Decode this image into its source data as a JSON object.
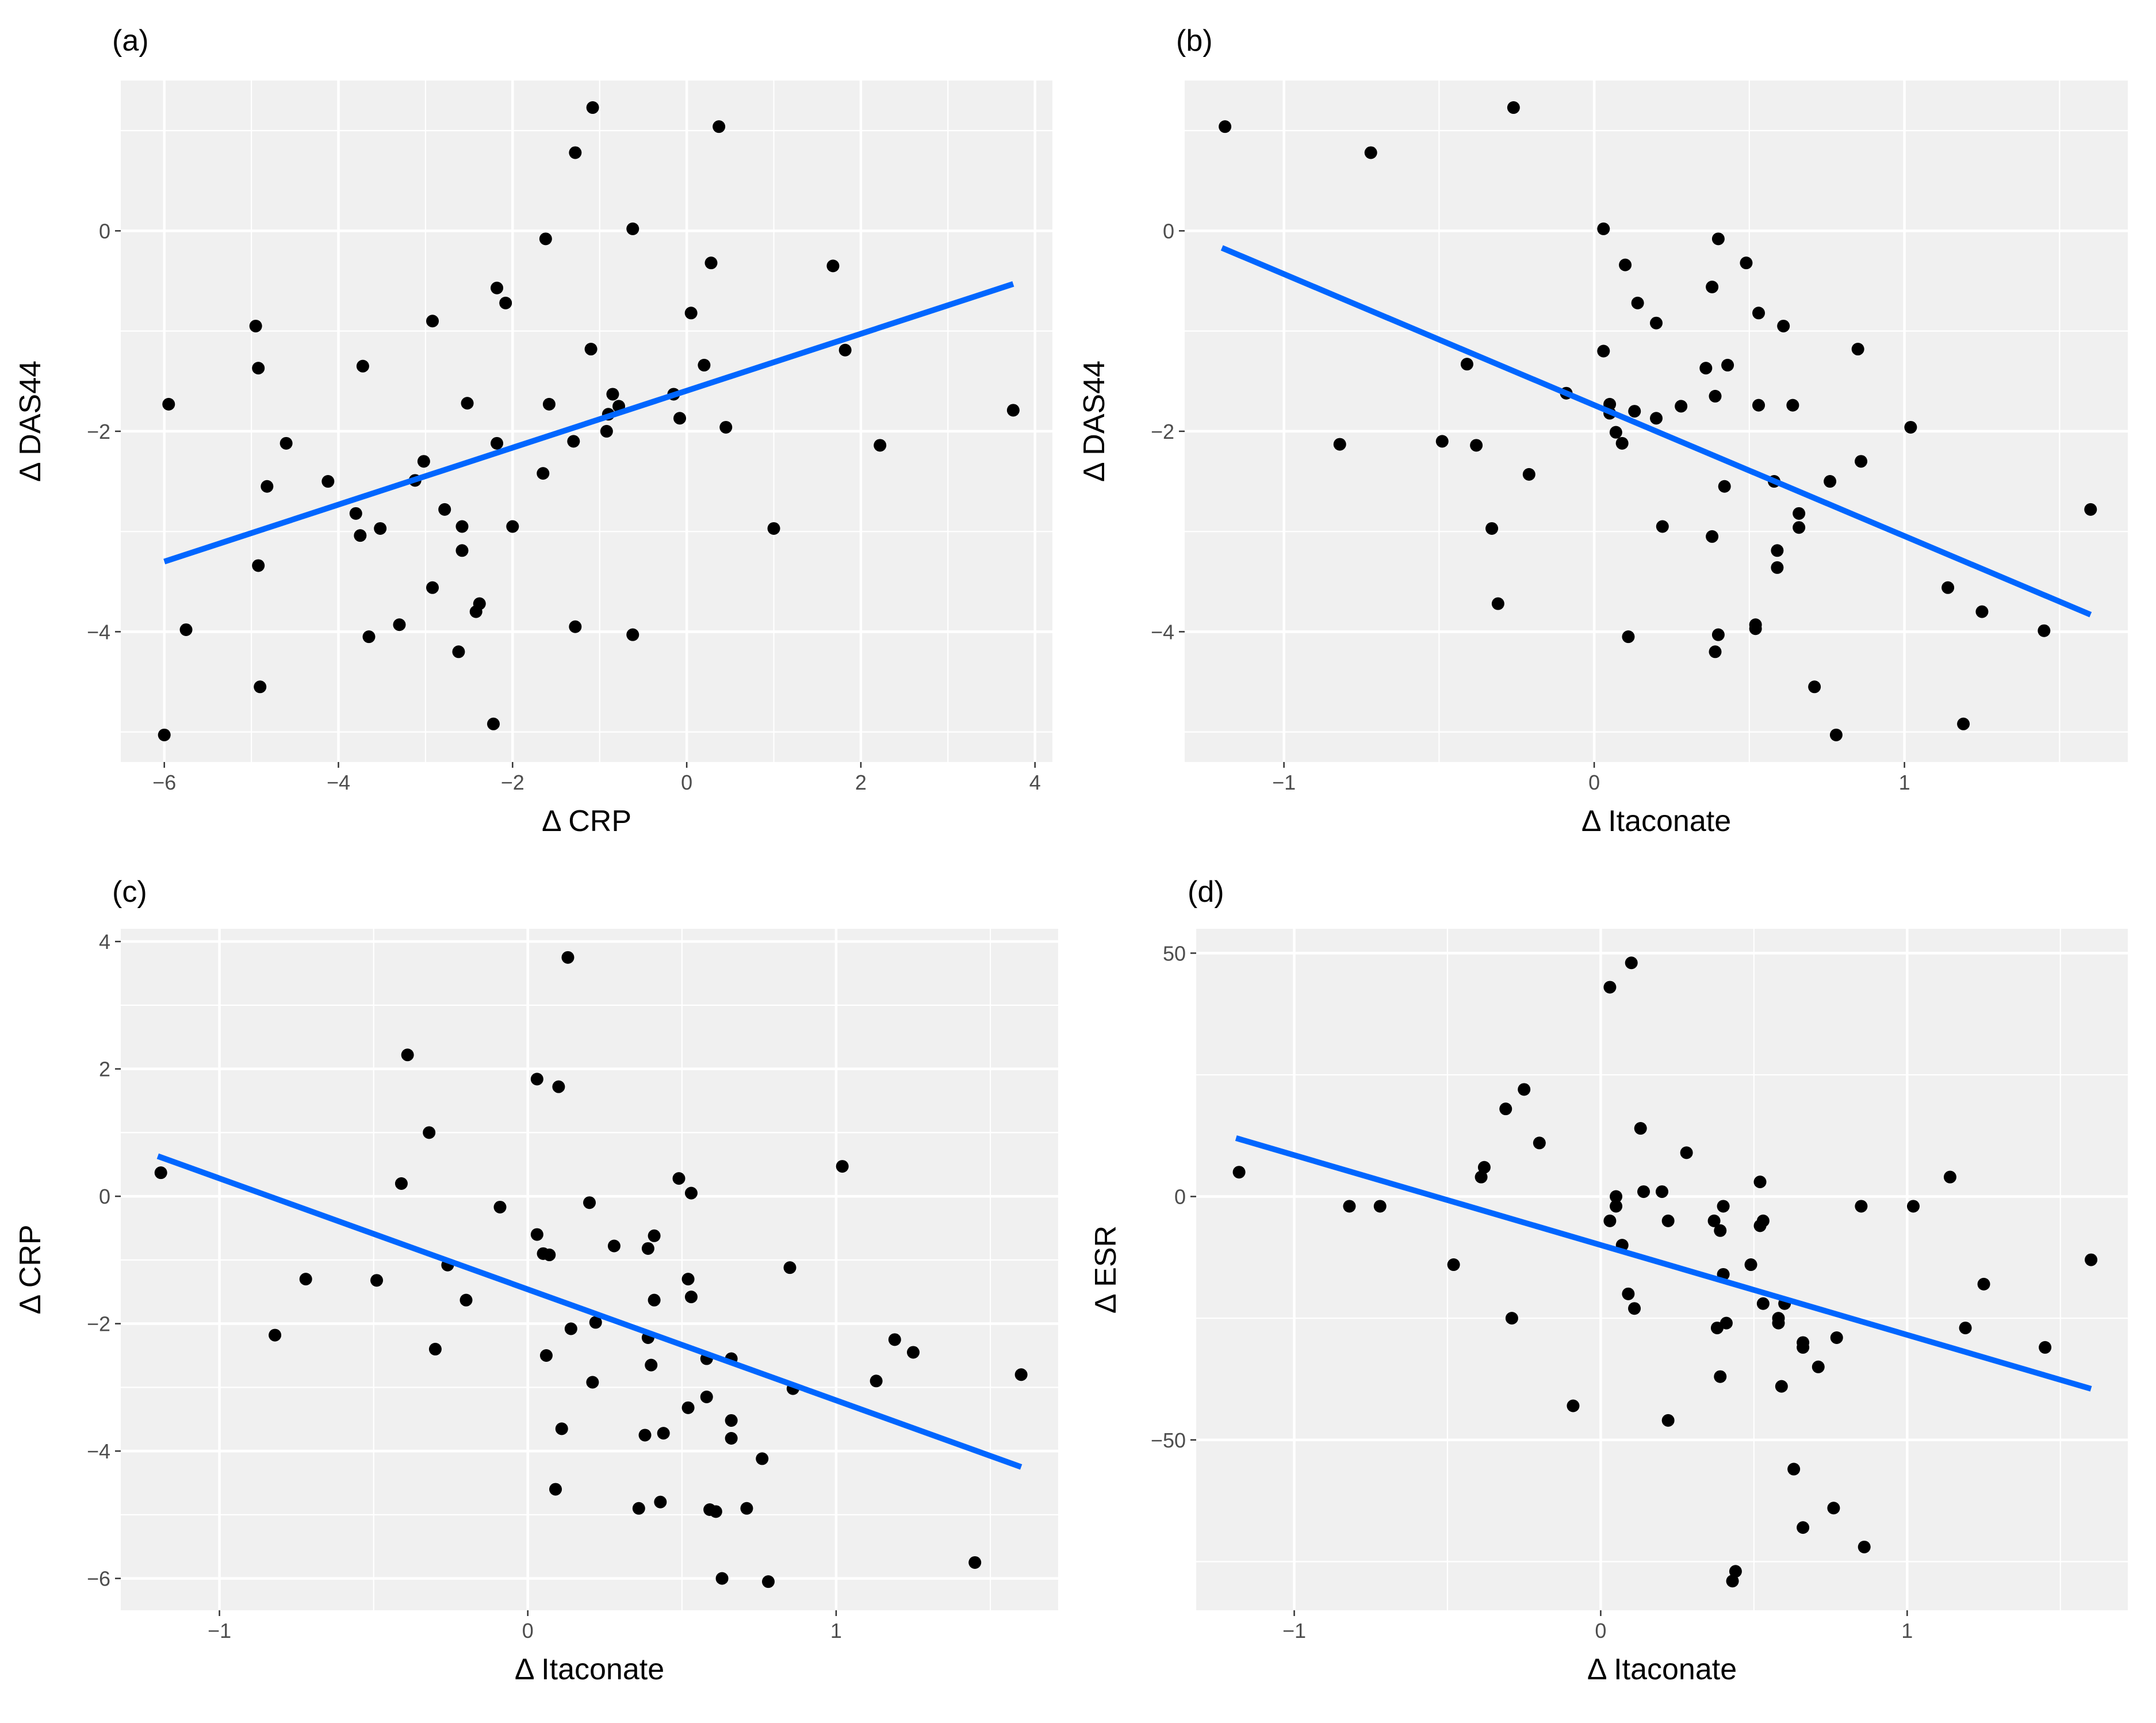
{
  "colors": {
    "fit_line": "#0066FF",
    "points": "#000000",
    "panel_background": "#F0F0F0",
    "grid": "#FFFFFF"
  },
  "chart_data": [
    {
      "type": "scatter",
      "label": "(a)",
      "xlabel": "Δ CRP",
      "ylabel": "Δ DAS44",
      "xlim": [
        -6.5,
        4.2
      ],
      "ylim": [
        -5.3,
        1.5
      ],
      "xticks": [
        -6,
        -4,
        -2,
        0,
        2,
        4
      ],
      "xtick_labels": [
        "−6",
        "−4",
        "−2",
        "0",
        "2",
        "4"
      ],
      "yticks": [
        -4,
        -2,
        0
      ],
      "ytick_labels": [
        "−4",
        "−2",
        "0"
      ],
      "fit_line": {
        "x": [
          -6.0,
          3.75
        ],
        "y": [
          -3.3,
          -0.53
        ]
      },
      "points": [
        [
          -6.0,
          -5.03
        ],
        [
          -5.95,
          -1.73
        ],
        [
          -5.75,
          -3.98
        ],
        [
          -4.95,
          -0.95
        ],
        [
          -4.92,
          -1.37
        ],
        [
          -4.92,
          -3.34
        ],
        [
          -4.9,
          -4.55
        ],
        [
          -4.82,
          -2.55
        ],
        [
          -4.6,
          -2.12
        ],
        [
          -4.12,
          -2.5
        ],
        [
          -3.8,
          -2.82
        ],
        [
          -3.75,
          -3.04
        ],
        [
          -3.72,
          -1.35
        ],
        [
          -3.65,
          -4.05
        ],
        [
          -3.52,
          -2.97
        ],
        [
          -3.3,
          -3.93
        ],
        [
          -3.12,
          -2.49
        ],
        [
          -3.02,
          -2.3
        ],
        [
          -2.92,
          -3.56
        ],
        [
          -2.92,
          -0.9
        ],
        [
          -2.78,
          -2.78
        ],
        [
          -2.58,
          -2.95
        ],
        [
          -2.58,
          -3.19
        ],
        [
          -2.52,
          -1.72
        ],
        [
          -2.62,
          -4.2
        ],
        [
          -2.42,
          -3.8
        ],
        [
          -2.38,
          -3.72
        ],
        [
          -2.22,
          -4.92
        ],
        [
          -2.18,
          -0.57
        ],
        [
          -2.18,
          -2.12
        ],
        [
          -2.08,
          -0.72
        ],
        [
          -2.0,
          -2.95
        ],
        [
          -1.65,
          -2.42
        ],
        [
          -1.62,
          -0.08
        ],
        [
          -1.58,
          -1.73
        ],
        [
          -1.3,
          -2.1
        ],
        [
          -1.28,
          0.78
        ],
        [
          -1.28,
          -3.95
        ],
        [
          -1.1,
          -1.18
        ],
        [
          -1.08,
          1.23
        ],
        [
          -0.9,
          -1.83
        ],
        [
          -0.85,
          -1.63
        ],
        [
          -0.78,
          -1.75
        ],
        [
          -0.62,
          0.02
        ],
        [
          -0.62,
          -4.03
        ],
        [
          -0.92,
          -2.0
        ],
        [
          -0.15,
          -1.63
        ],
        [
          -0.08,
          -1.87
        ],
        [
          0.05,
          -0.82
        ],
        [
          0.2,
          -1.34
        ],
        [
          0.28,
          -0.32
        ],
        [
          0.37,
          1.04
        ],
        [
          0.45,
          -1.96
        ],
        [
          1.0,
          -2.97
        ],
        [
          1.68,
          -0.35
        ],
        [
          1.82,
          -1.19
        ],
        [
          2.22,
          -2.14
        ],
        [
          3.75,
          -1.79
        ]
      ]
    },
    {
      "type": "scatter",
      "label": "(b)",
      "xlabel": "Δ Itaconate",
      "ylabel": "Δ DAS44",
      "xlim": [
        -1.32,
        1.72
      ],
      "ylim": [
        -5.3,
        1.5
      ],
      "xticks": [
        -1,
        0,
        1
      ],
      "xtick_labels": [
        "−1",
        "0",
        "1"
      ],
      "yticks": [
        -4,
        -2,
        0
      ],
      "ytick_labels": [
        "−4",
        "−2",
        "0"
      ],
      "fit_line": {
        "x": [
          -1.2,
          1.6
        ],
        "y": [
          -0.17,
          -3.83
        ]
      },
      "points": [
        [
          -1.19,
          1.04
        ],
        [
          -0.82,
          -2.13
        ],
        [
          -0.72,
          0.78
        ],
        [
          -0.49,
          -2.1
        ],
        [
          -0.41,
          -1.33
        ],
        [
          -0.38,
          -2.14
        ],
        [
          -0.33,
          -2.97
        ],
        [
          -0.31,
          -3.72
        ],
        [
          -0.26,
          1.23
        ],
        [
          -0.21,
          -2.43
        ],
        [
          -0.09,
          -1.62
        ],
        [
          0.03,
          0.02
        ],
        [
          0.03,
          -1.2
        ],
        [
          0.05,
          -1.73
        ],
        [
          0.05,
          -1.82
        ],
        [
          0.07,
          -2.01
        ],
        [
          0.09,
          -2.12
        ],
        [
          0.1,
          -0.34
        ],
        [
          0.11,
          -4.05
        ],
        [
          0.13,
          -1.8
        ],
        [
          0.14,
          -0.72
        ],
        [
          0.2,
          -0.92
        ],
        [
          0.2,
          -1.87
        ],
        [
          0.22,
          -2.95
        ],
        [
          0.28,
          -1.75
        ],
        [
          0.36,
          -1.37
        ],
        [
          0.38,
          -3.05
        ],
        [
          0.38,
          -0.56
        ],
        [
          0.39,
          -1.65
        ],
        [
          0.39,
          -4.2
        ],
        [
          0.4,
          -0.08
        ],
        [
          0.4,
          -4.03
        ],
        [
          0.42,
          -2.55
        ],
        [
          0.43,
          -1.34
        ],
        [
          0.49,
          -0.32
        ],
        [
          0.52,
          -3.93
        ],
        [
          0.52,
          -3.97
        ],
        [
          0.53,
          -1.74
        ],
        [
          0.53,
          -0.82
        ],
        [
          0.58,
          -2.5
        ],
        [
          0.59,
          -3.19
        ],
        [
          0.59,
          -3.36
        ],
        [
          0.61,
          -0.95
        ],
        [
          0.64,
          -1.74
        ],
        [
          0.66,
          -2.82
        ],
        [
          0.66,
          -2.96
        ],
        [
          0.71,
          -4.55
        ],
        [
          0.76,
          -2.5
        ],
        [
          0.78,
          -5.03
        ],
        [
          0.85,
          -1.18
        ],
        [
          0.86,
          -2.3
        ],
        [
          1.02,
          -1.96
        ],
        [
          1.14,
          -3.56
        ],
        [
          1.19,
          -4.92
        ],
        [
          1.25,
          -3.8
        ],
        [
          1.45,
          -3.99
        ],
        [
          1.6,
          -2.78
        ]
      ]
    },
    {
      "type": "scatter",
      "label": "(c)",
      "xlabel": "Δ Itaconate",
      "ylabel": "Δ CRP",
      "xlim": [
        -1.32,
        1.72
      ],
      "ylim": [
        -6.5,
        4.2
      ],
      "xticks": [
        -1,
        0,
        1
      ],
      "xtick_labels": [
        "−1",
        "0",
        "1"
      ],
      "yticks": [
        -6,
        -4,
        -2,
        0,
        2,
        4
      ],
      "ytick_labels": [
        "−6",
        "−4",
        "−2",
        "0",
        "2",
        "4"
      ],
      "fit_line": {
        "x": [
          -1.2,
          1.6
        ],
        "y": [
          0.63,
          -4.25
        ]
      },
      "points": [
        [
          -1.19,
          0.37
        ],
        [
          -0.82,
          -2.18
        ],
        [
          -0.72,
          -1.3
        ],
        [
          -0.49,
          -1.32
        ],
        [
          -0.41,
          0.2
        ],
        [
          -0.39,
          2.22
        ],
        [
          -0.32,
          1.0
        ],
        [
          -0.3,
          -2.4
        ],
        [
          -0.26,
          -1.08
        ],
        [
          -0.2,
          -1.63
        ],
        [
          -0.09,
          -0.17
        ],
        [
          0.03,
          1.84
        ],
        [
          0.03,
          -0.6
        ],
        [
          0.05,
          -0.9
        ],
        [
          0.06,
          -2.5
        ],
        [
          0.07,
          -0.92
        ],
        [
          0.09,
          -4.6
        ],
        [
          0.1,
          1.72
        ],
        [
          0.11,
          -3.65
        ],
        [
          0.13,
          3.75
        ],
        [
          0.14,
          -2.08
        ],
        [
          0.2,
          -0.1
        ],
        [
          0.21,
          -2.92
        ],
        [
          0.22,
          -1.98
        ],
        [
          0.28,
          -0.78
        ],
        [
          0.36,
          -4.9
        ],
        [
          0.38,
          -3.75
        ],
        [
          0.39,
          -0.82
        ],
        [
          0.39,
          -2.22
        ],
        [
          0.4,
          -2.65
        ],
        [
          0.41,
          -0.62
        ],
        [
          0.41,
          -1.63
        ],
        [
          0.43,
          -4.8
        ],
        [
          0.44,
          -3.72
        ],
        [
          0.49,
          0.28
        ],
        [
          0.52,
          -1.3
        ],
        [
          0.52,
          -3.32
        ],
        [
          0.53,
          0.05
        ],
        [
          0.53,
          -1.58
        ],
        [
          0.58,
          -2.55
        ],
        [
          0.58,
          -3.15
        ],
        [
          0.59,
          -4.92
        ],
        [
          0.61,
          -4.95
        ],
        [
          0.63,
          -6.0
        ],
        [
          0.66,
          -2.55
        ],
        [
          0.66,
          -3.52
        ],
        [
          0.66,
          -3.8
        ],
        [
          0.71,
          -4.9
        ],
        [
          0.76,
          -4.12
        ],
        [
          0.78,
          -6.05
        ],
        [
          0.85,
          -1.12
        ],
        [
          0.86,
          -3.02
        ],
        [
          1.02,
          0.47
        ],
        [
          1.13,
          -2.9
        ],
        [
          1.19,
          -2.25
        ],
        [
          1.25,
          -2.45
        ],
        [
          1.45,
          -5.75
        ],
        [
          1.6,
          -2.8
        ]
      ]
    },
    {
      "type": "scatter",
      "label": "(d)",
      "xlabel": "Δ Itaconate",
      "ylabel": "Δ ESR",
      "xlim": [
        -1.32,
        1.72
      ],
      "ylim": [
        -85,
        55
      ],
      "xticks": [
        -1,
        0,
        1
      ],
      "xtick_labels": [
        "−1",
        "0",
        "1"
      ],
      "yticks": [
        -50,
        0,
        50
      ],
      "ytick_labels": [
        "−50",
        "0",
        "50"
      ],
      "fit_line": {
        "x": [
          -1.19,
          1.6
        ],
        "y": [
          12.0,
          -39.5
        ]
      },
      "points": [
        [
          -1.18,
          5
        ],
        [
          -0.82,
          -2
        ],
        [
          -0.72,
          -2
        ],
        [
          -0.48,
          -14
        ],
        [
          -0.39,
          4
        ],
        [
          -0.38,
          6
        ],
        [
          -0.31,
          18
        ],
        [
          -0.29,
          -25
        ],
        [
          -0.25,
          22
        ],
        [
          -0.2,
          11
        ],
        [
          -0.09,
          -43
        ],
        [
          0.03,
          43
        ],
        [
          0.03,
          -5
        ],
        [
          0.05,
          0
        ],
        [
          0.05,
          -2
        ],
        [
          0.07,
          -10
        ],
        [
          0.09,
          -20
        ],
        [
          0.1,
          48
        ],
        [
          0.11,
          -23
        ],
        [
          0.13,
          14
        ],
        [
          0.14,
          1
        ],
        [
          0.2,
          1
        ],
        [
          0.22,
          -46
        ],
        [
          0.22,
          -5
        ],
        [
          0.28,
          9
        ],
        [
          0.37,
          -5
        ],
        [
          0.38,
          -27
        ],
        [
          0.39,
          -7
        ],
        [
          0.39,
          -37
        ],
        [
          0.4,
          -16
        ],
        [
          0.4,
          -2
        ],
        [
          0.41,
          -26
        ],
        [
          0.43,
          -79
        ],
        [
          0.44,
          -77
        ],
        [
          0.49,
          -14
        ],
        [
          0.52,
          3
        ],
        [
          0.52,
          -6
        ],
        [
          0.53,
          -5
        ],
        [
          0.53,
          -22
        ],
        [
          0.58,
          -25
        ],
        [
          0.58,
          -26
        ],
        [
          0.59,
          -39
        ],
        [
          0.6,
          -22
        ],
        [
          0.63,
          -56
        ],
        [
          0.66,
          -30
        ],
        [
          0.66,
          -31
        ],
        [
          0.66,
          -68
        ],
        [
          0.71,
          -35
        ],
        [
          0.76,
          -64
        ],
        [
          0.77,
          -29
        ],
        [
          0.85,
          -2
        ],
        [
          0.86,
          -72
        ],
        [
          1.02,
          -2
        ],
        [
          1.14,
          4
        ],
        [
          1.19,
          -27
        ],
        [
          1.25,
          -18
        ],
        [
          1.45,
          -31
        ],
        [
          1.6,
          -13
        ]
      ]
    }
  ]
}
